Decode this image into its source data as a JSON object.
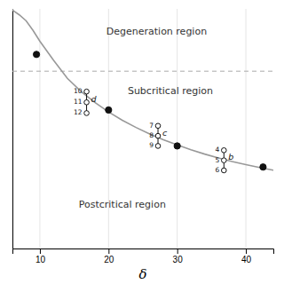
{
  "chart_data": {
    "type": "line",
    "xlabel": "δ",
    "xlim": [
      6,
      44
    ],
    "ylim": [
      0,
      10
    ],
    "xticks": [
      10,
      20,
      30,
      40
    ],
    "tick_labels": "x",
    "grid": true,
    "series": [
      {
        "type": "line",
        "color": "#999999",
        "line_style": "solid",
        "x": [
          6.0,
          7.0,
          8.0,
          9.0,
          10.0,
          12.0,
          14.0,
          16.0,
          18.0,
          20.0,
          22.0,
          24.0,
          26.0,
          28.0,
          30.0,
          32.0,
          34.0,
          36.0,
          38.0,
          40.0,
          42.0,
          44.0
        ],
        "values": [
          9.95,
          9.75,
          9.5,
          9.1,
          8.65,
          7.85,
          7.1,
          6.55,
          6.1,
          5.7,
          5.35,
          5.05,
          4.78,
          4.54,
          4.32,
          4.12,
          3.94,
          3.78,
          3.63,
          3.5,
          3.38,
          3.27
        ]
      },
      {
        "type": "scatter",
        "color": "#111111",
        "marker": "filled",
        "x": [
          9.5,
          20.0,
          30.0,
          42.5
        ],
        "values": [
          8.1,
          5.78,
          4.28,
          3.4
        ]
      }
    ],
    "groups": [
      {
        "x": 16.8,
        "values": [
          6.55,
          6.1,
          5.65
        ],
        "point_labels": [
          "10",
          "11",
          "12"
        ],
        "letter": "d",
        "marker": "open",
        "color": "#111111"
      },
      {
        "x": 27.2,
        "values": [
          5.12,
          4.7,
          4.28
        ],
        "point_labels": [
          "7",
          "8",
          "9"
        ],
        "letter": "c",
        "marker": "open",
        "color": "#111111"
      },
      {
        "x": 36.8,
        "values": [
          4.1,
          3.68,
          3.26
        ],
        "point_labels": [
          "4",
          "5",
          "6"
        ],
        "letter": "b",
        "marker": "open",
        "color": "#111111"
      }
    ],
    "reference_line": {
      "y": 7.4,
      "color": "#aaaaaa",
      "line_style": "dashed"
    },
    "annotations": [
      {
        "text": "Degeneration region",
        "x": 27,
        "y": 9.05
      },
      {
        "text": "Subcritical region",
        "x": 29,
        "y": 6.55
      },
      {
        "text": "Postcritical region",
        "x": 22,
        "y": 1.8
      }
    ]
  }
}
